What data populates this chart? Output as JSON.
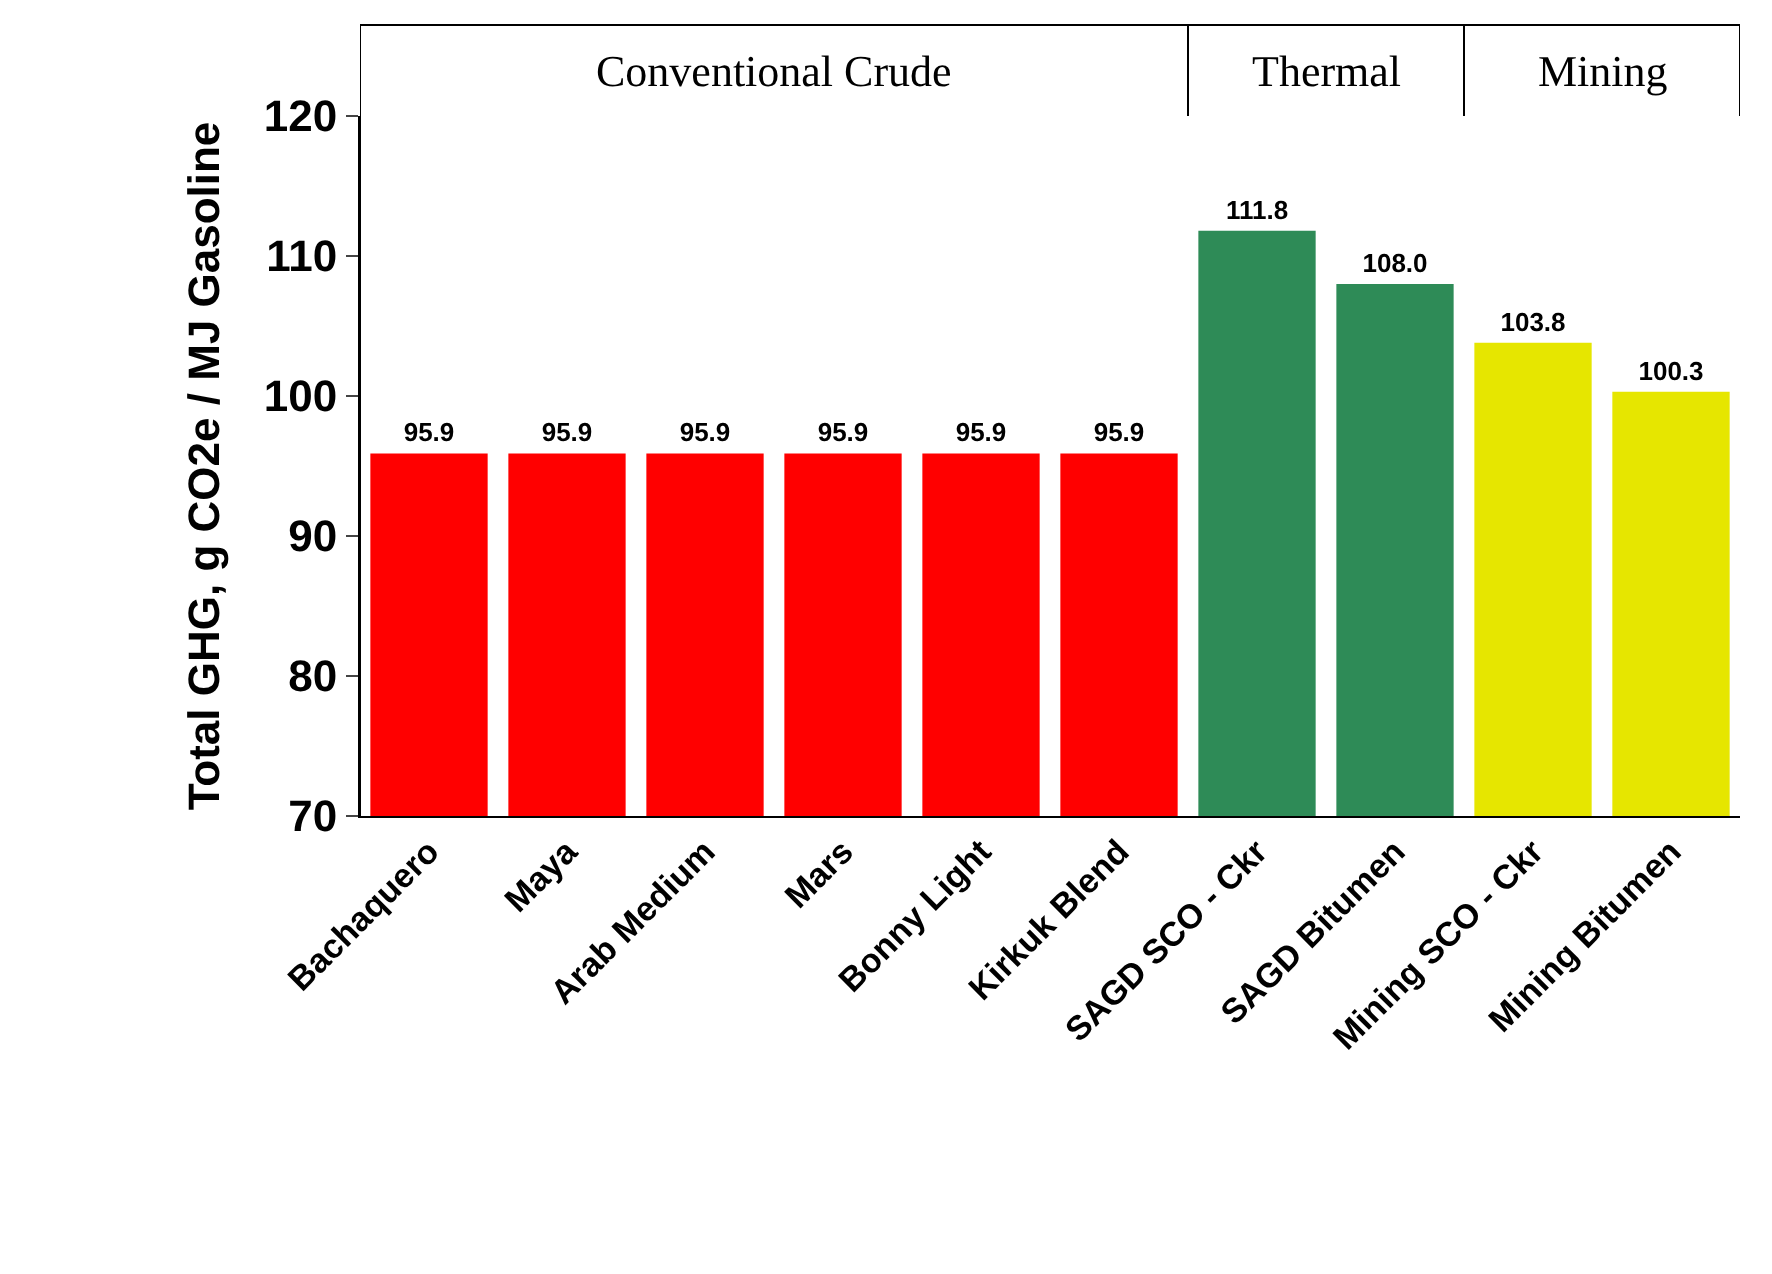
{
  "chart_data": {
    "type": "bar",
    "ylabel": "Total GHG, g CO2e / MJ Gasoline",
    "categories": [
      "Bachaquero",
      "Maya",
      "Arab Medium",
      "Mars",
      "Bonny Light",
      "Kirkuk Blend",
      "SAGD SCO - Ckr",
      "SAGD Bitumen",
      "Mining SCO - Ckr",
      "Mining Bitumen"
    ],
    "values": [
      95.9,
      95.9,
      95.9,
      95.9,
      95.9,
      95.9,
      111.8,
      108.0,
      103.8,
      100.3
    ],
    "colors": [
      "#ff0000",
      "#ff0000",
      "#ff0000",
      "#ff0000",
      "#ff0000",
      "#ff0000",
      "#2e8b57",
      "#2e8b57",
      "#e6e600",
      "#e6e600"
    ],
    "value_labels": [
      "95.9",
      "95.9",
      "95.9",
      "95.9",
      "95.9",
      "95.9",
      "111.8",
      "108.0",
      "103.8",
      "100.3"
    ],
    "ylim": [
      70,
      120
    ],
    "yticks": [
      70,
      80,
      90,
      100,
      110,
      120
    ],
    "legend": false,
    "annotations": [
      "Conventional Crude",
      "Thermal",
      "Mining"
    ]
  }
}
